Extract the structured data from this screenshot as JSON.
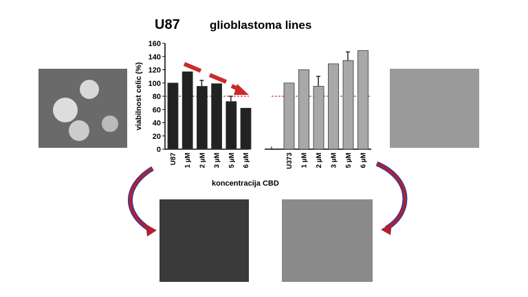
{
  "header": {
    "cell_line": "U87",
    "title": "glioblastoma lines"
  },
  "chart_data": [
    {
      "type": "bar",
      "categories": [
        "U87",
        "1 µM",
        "2 µM",
        "3 µM",
        "5 µM",
        "6 µM"
      ],
      "values": [
        100,
        117,
        95,
        99,
        72,
        62
      ],
      "error_upper": [
        null,
        null,
        104,
        null,
        80,
        null
      ],
      "ylabel": "viabilnost celic (%)",
      "xlabel": "koncentracija CBD",
      "ylim": [
        0,
        160
      ],
      "yticks": [
        0,
        20,
        40,
        60,
        80,
        100,
        120,
        140,
        160
      ],
      "reference_line": 80,
      "bar_color": "#222222",
      "trend_arrow_color": "#cc2a2a"
    },
    {
      "type": "bar",
      "categories": [
        "U373",
        "1 µM",
        "2 µM",
        "3 µM",
        "5 µM",
        "6 µM"
      ],
      "values": [
        100,
        120,
        95,
        129,
        134,
        149
      ],
      "error_upper": [
        null,
        null,
        110,
        null,
        147,
        null
      ],
      "ylim": [
        0,
        160
      ],
      "reference_line": 80,
      "bar_color": "#a8a8a8"
    }
  ],
  "colors": {
    "reference_line": "#e03030",
    "curved_arrow": "#b02030",
    "curved_arrow_edge": "#3a3a9a"
  }
}
